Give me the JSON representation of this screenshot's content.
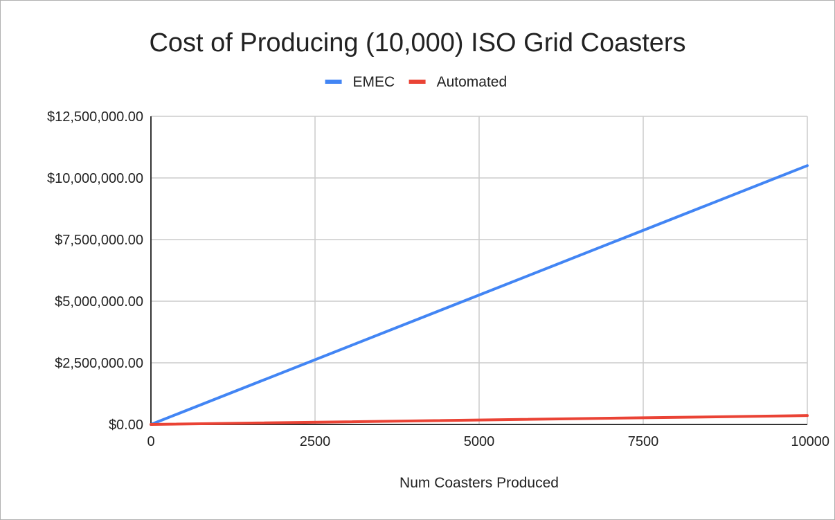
{
  "chart_data": {
    "type": "line",
    "title": "Cost of Producing (10,000) ISO Grid Coasters",
    "xlabel": "Num Coasters Produced",
    "ylabel": "",
    "xlim": [
      0,
      10000
    ],
    "ylim": [
      0,
      12500000
    ],
    "x_ticks": [
      {
        "value": 0,
        "label": "0"
      },
      {
        "value": 2500,
        "label": "2500"
      },
      {
        "value": 5000,
        "label": "5000"
      },
      {
        "value": 7500,
        "label": "7500"
      },
      {
        "value": 10000,
        "label": "10000"
      }
    ],
    "y_ticks": [
      {
        "value": 0,
        "label": "$0.00"
      },
      {
        "value": 2500000,
        "label": "$2,500,000.00"
      },
      {
        "value": 5000000,
        "label": "$5,000,000.00"
      },
      {
        "value": 7500000,
        "label": "$7,500,000.00"
      },
      {
        "value": 10000000,
        "label": "$10,000,000.00"
      },
      {
        "value": 12500000,
        "label": "$12,500,000.00"
      }
    ],
    "grid": true,
    "legend_position": "top-center",
    "series": [
      {
        "name": "EMEC",
        "color": "#4285f4",
        "x": [
          0,
          10000
        ],
        "y": [
          0,
          10500000
        ]
      },
      {
        "name": "Automated",
        "color": "#ea4335",
        "x": [
          0,
          10000
        ],
        "y": [
          0,
          360000
        ]
      }
    ]
  },
  "colors": {
    "grid": "#cccccc",
    "axis": "#333333",
    "text": "#222222",
    "frame_border": "#b0b0b0"
  }
}
